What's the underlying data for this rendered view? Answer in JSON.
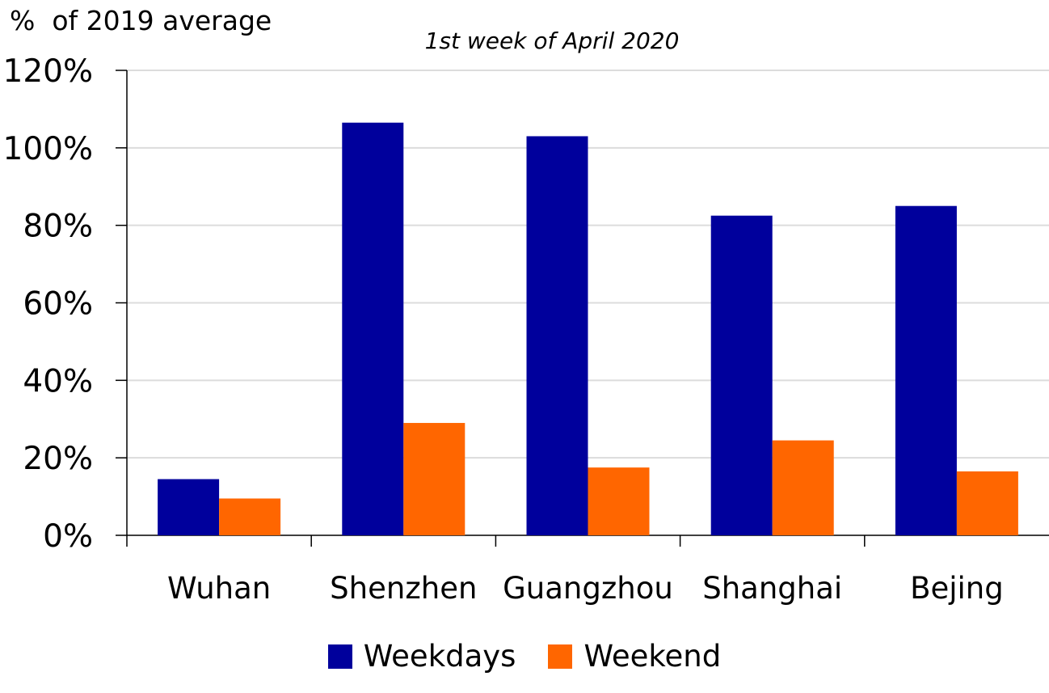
{
  "chart_data": {
    "type": "bar",
    "title": "",
    "subtitle": "1st week of April 2020",
    "ylabel": "%  of 2019 average",
    "xlabel": "",
    "categories": [
      "Wuhan",
      "Shenzhen",
      "Guangzhou",
      "Shanghai",
      "Bejing"
    ],
    "series": [
      {
        "name": "Weekdays",
        "color": "#00009C",
        "values": [
          14.5,
          106.5,
          103,
          82.5,
          85
        ]
      },
      {
        "name": "Weekend",
        "color": "#FF6600",
        "values": [
          9.5,
          29,
          17.5,
          24.5,
          16.5
        ]
      }
    ],
    "ylim": [
      0,
      120
    ],
    "yticks": [
      "0%",
      "20%",
      "40%",
      "60%",
      "80%",
      "100%",
      "120%"
    ],
    "grid": true,
    "legend": "bottom"
  }
}
